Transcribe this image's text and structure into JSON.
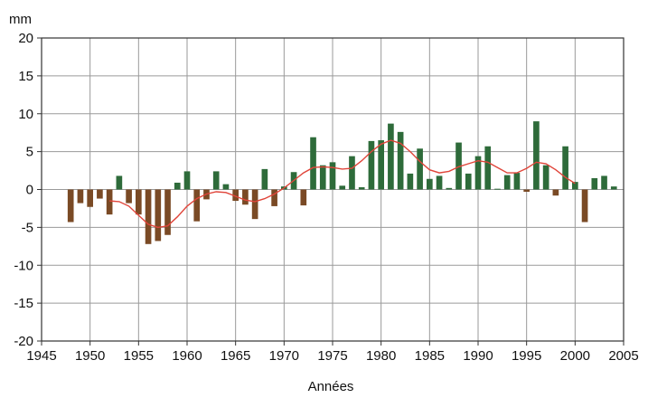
{
  "chart_data": {
    "type": "bar",
    "ylabel": "mm",
    "xlabel": "Années",
    "ylim": [
      -20,
      20
    ],
    "xlim": [
      1945,
      2005
    ],
    "x_ticks": [
      "1945",
      "1950",
      "1955",
      "1960",
      "1965",
      "1970",
      "1975",
      "1980",
      "1985",
      "1990",
      "1995",
      "2000",
      "2005"
    ],
    "y_ticks": [
      "20",
      "15",
      "10",
      "5",
      "0",
      "-5",
      "-10",
      "-15",
      "-20"
    ],
    "grid": true,
    "colors": {
      "positive": "#2e6b3a",
      "negative": "#7a4a25",
      "smooth": "#e0453a",
      "grid": "#9a9a9a"
    },
    "series": [
      {
        "kind": "bar",
        "x": [
          1948,
          1949,
          1950,
          1951,
          1952,
          1953,
          1954,
          1955,
          1956,
          1957,
          1958,
          1959,
          1960,
          1961,
          1962,
          1963,
          1964,
          1965,
          1966,
          1967,
          1968,
          1969,
          1970,
          1971,
          1972,
          1973,
          1974,
          1975,
          1976,
          1977,
          1978,
          1979,
          1980,
          1981,
          1982,
          1983,
          1984,
          1985,
          1986,
          1987,
          1988,
          1989,
          1990,
          1991,
          1992,
          1993,
          1994,
          1995,
          1996,
          1997,
          1998,
          1999,
          2000,
          2001,
          2002,
          2003,
          2004
        ],
        "values": [
          -4.3,
          -1.8,
          -2.3,
          -1.2,
          -3.3,
          1.8,
          -1.8,
          -3.3,
          -7.2,
          -6.8,
          -6.0,
          0.9,
          2.4,
          -4.2,
          -1.3,
          2.4,
          0.7,
          -1.5,
          -2.0,
          -3.9,
          2.7,
          -2.2,
          0.4,
          2.3,
          -2.1,
          6.9,
          3.2,
          3.6,
          0.5,
          4.4,
          0.3,
          6.4,
          6.5,
          8.7,
          7.6,
          2.1,
          5.4,
          1.4,
          1.8,
          0.2,
          6.2,
          2.1,
          4.4,
          5.7,
          0.1,
          1.9,
          2.2,
          -0.3,
          9.0,
          3.2,
          -0.8,
          5.7,
          1.0,
          -4.3,
          1.5,
          1.8,
          0.4
        ]
      },
      {
        "kind": "line",
        "x": [
          1952,
          1953,
          1954,
          1955,
          1956,
          1957,
          1958,
          1959,
          1960,
          1961,
          1962,
          1963,
          1964,
          1965,
          1966,
          1967,
          1968,
          1969,
          1970,
          1971,
          1972,
          1973,
          1974,
          1975,
          1976,
          1977,
          1978,
          1979,
          1980,
          1981,
          1982,
          1983,
          1984,
          1985,
          1986,
          1987,
          1988,
          1989,
          1990,
          1991,
          1992,
          1993,
          1994,
          1995,
          1996,
          1997,
          1998,
          1999,
          2000
        ],
        "values": [
          -1.5,
          -1.6,
          -2.2,
          -3.4,
          -4.6,
          -5.0,
          -4.8,
          -3.6,
          -2.2,
          -1.2,
          -0.6,
          -0.3,
          -0.4,
          -0.9,
          -1.4,
          -1.6,
          -1.2,
          -0.6,
          0.2,
          1.2,
          2.2,
          2.9,
          3.0,
          2.9,
          2.7,
          2.8,
          3.8,
          5.0,
          6.0,
          6.5,
          6.1,
          5.0,
          3.7,
          2.6,
          2.2,
          2.4,
          3.0,
          3.4,
          3.8,
          3.6,
          2.9,
          2.2,
          2.2,
          2.8,
          3.6,
          3.4,
          2.6,
          1.6,
          0.8
        ]
      }
    ]
  }
}
